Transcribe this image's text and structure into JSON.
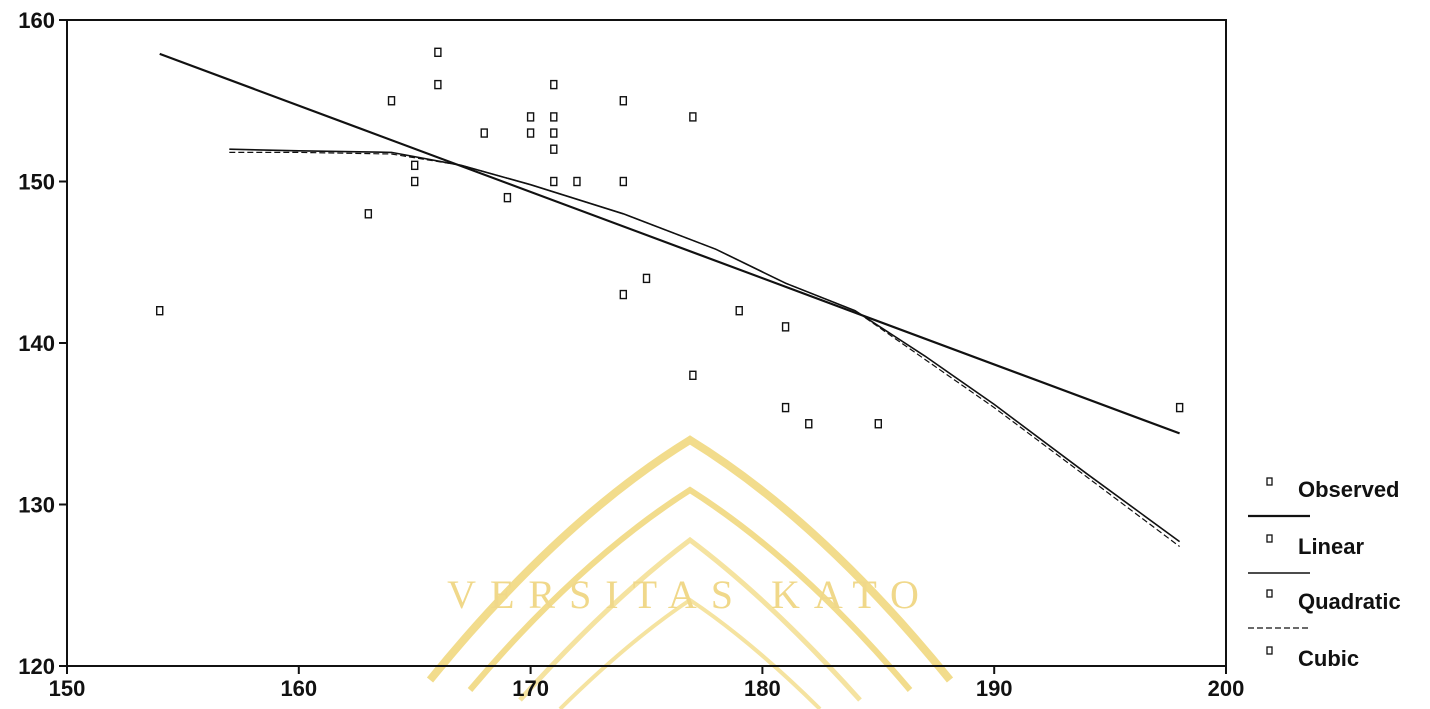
{
  "chart_data": {
    "type": "scatter",
    "title": "",
    "xlabel": "",
    "ylabel": "",
    "xlim": [
      150,
      200
    ],
    "ylim": [
      120,
      160
    ],
    "xticks": [
      150,
      160,
      170,
      180,
      190,
      200
    ],
    "yticks": [
      120,
      130,
      140,
      150,
      160
    ],
    "grid": false,
    "legend_position": "right",
    "watermark": "VERSITAS KATO",
    "colors": {
      "ink": "#111111",
      "watermark": "#f2dc8c"
    },
    "observed": {
      "name": "Observed",
      "points": [
        [
          154,
          142
        ],
        [
          163,
          148
        ],
        [
          164,
          155
        ],
        [
          165,
          151
        ],
        [
          165,
          150
        ],
        [
          166,
          158
        ],
        [
          166,
          156
        ],
        [
          168,
          153
        ],
        [
          169,
          149
        ],
        [
          170,
          154
        ],
        [
          170,
          153
        ],
        [
          171,
          156
        ],
        [
          171,
          154
        ],
        [
          171,
          153
        ],
        [
          171,
          152
        ],
        [
          171,
          150
        ],
        [
          172,
          150
        ],
        [
          174,
          155
        ],
        [
          174,
          150
        ],
        [
          174,
          143
        ],
        [
          175,
          144
        ],
        [
          177,
          154
        ],
        [
          177,
          138
        ],
        [
          179,
          142
        ],
        [
          181,
          141
        ],
        [
          181,
          136
        ],
        [
          182,
          135
        ],
        [
          185,
          135
        ],
        [
          198,
          136
        ]
      ]
    },
    "fits": [
      {
        "name": "Linear",
        "x": [
          154,
          198
        ],
        "y": [
          157.9,
          134.4
        ]
      },
      {
        "name": "Quadratic",
        "x": [
          157,
          160,
          164,
          167,
          170,
          174,
          178,
          181,
          184,
          187,
          190,
          194,
          198
        ],
        "y": [
          152.0,
          151.9,
          151.8,
          151.0,
          149.8,
          148.0,
          145.8,
          143.7,
          142.0,
          139.2,
          136.2,
          131.9,
          127.7
        ]
      },
      {
        "name": "Cubic",
        "x": [
          157,
          160,
          164,
          167,
          170,
          174,
          178,
          181,
          184,
          187,
          190,
          194,
          198
        ],
        "y": [
          151.8,
          151.8,
          151.7,
          151.0,
          149.8,
          148.0,
          145.8,
          143.7,
          142.0,
          139.0,
          136.0,
          131.7,
          127.4
        ]
      }
    ],
    "legend": [
      "Observed",
      "Linear",
      "Quadratic",
      "Cubic"
    ]
  }
}
